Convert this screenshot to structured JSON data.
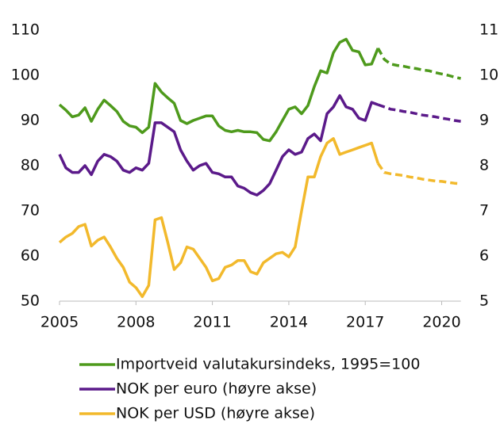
{
  "chart_data": {
    "type": "line",
    "x": [
      2005,
      2005.25,
      2005.5,
      2005.75,
      2006,
      2006.25,
      2006.5,
      2006.75,
      2007,
      2007.25,
      2007.5,
      2007.75,
      2008,
      2008.25,
      2008.5,
      2008.75,
      2009,
      2009.25,
      2009.5,
      2009.75,
      2010,
      2010.25,
      2010.5,
      2010.75,
      2011,
      2011.25,
      2011.5,
      2011.75,
      2012,
      2012.25,
      2012.5,
      2012.75,
      2013,
      2013.25,
      2013.5,
      2013.75,
      2014,
      2014.25,
      2014.5,
      2014.75,
      2015,
      2015.25,
      2015.5,
      2015.75,
      2016,
      2016.25,
      2016.5,
      2016.75,
      2017,
      2017.25,
      2017.5,
      2017.75,
      2018,
      2018.25,
      2018.5,
      2018.75,
      2019,
      2019.25,
      2019.5,
      2019.75,
      2020,
      2020.25,
      2020.5,
      2020.75
    ],
    "forecast_from": 2017.5,
    "series": [
      {
        "name": "Importveid valutakursindeks, 1995=100",
        "color": "#4e9a1c",
        "values": [
          93.5,
          92.3,
          90.8,
          91.2,
          92.8,
          89.8,
          92.5,
          94.5,
          93.3,
          92.0,
          89.8,
          88.8,
          88.5,
          87.3,
          88.5,
          98.2,
          96.3,
          95.0,
          93.8,
          90.0,
          89.3,
          90.0,
          90.5,
          91.0,
          91.0,
          88.8,
          87.8,
          87.5,
          87.8,
          87.5,
          87.5,
          87.3,
          85.8,
          85.5,
          87.5,
          90.0,
          92.5,
          93.0,
          91.5,
          93.3,
          97.5,
          101.0,
          100.5,
          105.0,
          107.3,
          108.0,
          105.5,
          105.2,
          102.3,
          102.5,
          106.0,
          103.5,
          102.5,
          102.2,
          102.0,
          101.7,
          101.5,
          101.2,
          101.0,
          100.6,
          100.3,
          100.0,
          99.6,
          99.3
        ]
      },
      {
        "name": "NOK per euro (høyre akse)",
        "color": "#5b1a8a",
        "axis": "y2",
        "values": [
          8.25,
          7.95,
          7.85,
          7.85,
          8.0,
          7.8,
          8.1,
          8.25,
          8.2,
          8.1,
          7.9,
          7.85,
          7.95,
          7.9,
          8.05,
          8.95,
          8.95,
          8.85,
          8.75,
          8.35,
          8.1,
          7.9,
          8.0,
          8.05,
          7.85,
          7.82,
          7.75,
          7.75,
          7.55,
          7.5,
          7.4,
          7.35,
          7.45,
          7.6,
          7.9,
          8.2,
          8.35,
          8.25,
          8.3,
          8.6,
          8.7,
          8.55,
          9.15,
          9.3,
          9.55,
          9.3,
          9.25,
          9.05,
          9.0,
          9.4,
          9.35,
          9.3,
          9.25,
          9.23,
          9.2,
          9.18,
          9.15,
          9.12,
          9.1,
          9.08,
          9.05,
          9.03,
          9.0,
          8.98
        ]
      },
      {
        "name": "NOK per USD (høyre akse)",
        "color": "#f2b92c",
        "axis": "y2",
        "values": [
          6.3,
          6.42,
          6.5,
          6.65,
          6.7,
          6.22,
          6.35,
          6.42,
          6.2,
          5.95,
          5.75,
          5.42,
          5.3,
          5.1,
          5.35,
          6.8,
          6.85,
          6.3,
          5.7,
          5.85,
          6.2,
          6.15,
          5.95,
          5.75,
          5.45,
          5.5,
          5.75,
          5.8,
          5.9,
          5.9,
          5.65,
          5.6,
          5.85,
          5.95,
          6.05,
          6.08,
          5.98,
          6.2,
          7.0,
          7.75,
          7.75,
          8.2,
          8.5,
          8.6,
          8.25,
          8.3,
          8.35,
          8.4,
          8.45,
          8.5,
          8.05,
          7.85,
          7.82,
          7.8,
          7.78,
          7.75,
          7.73,
          7.7,
          7.68,
          7.66,
          7.65,
          7.63,
          7.61,
          7.6
        ]
      }
    ],
    "xlim": [
      2005,
      2020.75
    ],
    "xticks": [
      2005,
      2008,
      2011,
      2014,
      2017,
      2020
    ],
    "ylim": [
      50,
      110
    ],
    "yticks": [
      50,
      60,
      70,
      80,
      90,
      100,
      110
    ],
    "y2lim": [
      5,
      11
    ],
    "y2ticks": [
      5,
      6,
      7,
      8,
      9,
      10,
      11
    ]
  }
}
